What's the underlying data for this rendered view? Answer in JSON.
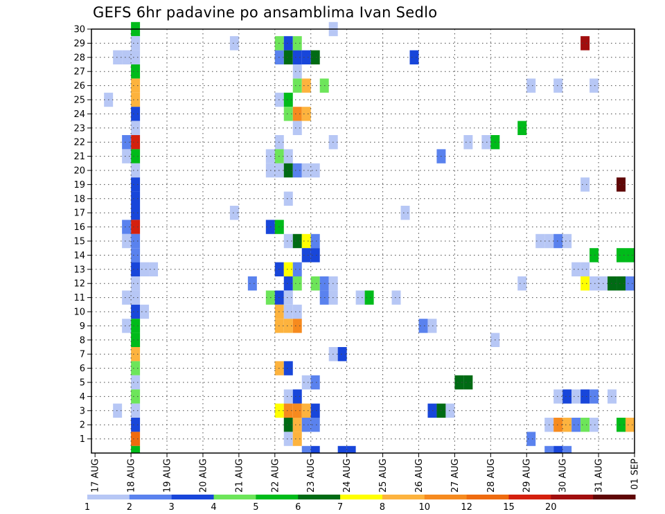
{
  "chart_data": {
    "type": "heatmap",
    "title": "GEFS 6hr padavine po ansamblima Ivan Sedlo",
    "y_ticks": [
      "1",
      "2",
      "3",
      "4",
      "5",
      "6",
      "7",
      "8",
      "9",
      "10",
      "11",
      "12",
      "13",
      "14",
      "15",
      "16",
      "17",
      "18",
      "19",
      "20",
      "21",
      "22",
      "23",
      "24",
      "25",
      "26",
      "27",
      "28",
      "29",
      "30"
    ],
    "x_ticks": [
      "17 AUG",
      "18 AUG",
      "19 AUG",
      "20 AUG",
      "21 AUG",
      "22 AUG",
      "23 AUG",
      "24 AUG",
      "25 AUG",
      "26 AUG",
      "27 AUG",
      "28 AUG",
      "29 AUG",
      "30 AUG",
      "31 AUG",
      "01 SEP"
    ],
    "x_range": [
      -0.1,
      15.0
    ],
    "y_range": [
      0,
      30
    ],
    "grid": true,
    "colorbar": {
      "labels": [
        "1",
        "2",
        "3",
        "4",
        "5",
        "6",
        "7",
        "8",
        "10",
        "12",
        "15",
        "20"
      ],
      "colors": [
        "#b7c7f5",
        "#5a82ee",
        "#1846da",
        "#6de55a",
        "#00bb1a",
        "#006b14",
        "#ffff00",
        "#fdb33e",
        "#f68a1e",
        "#ef6b0f",
        "#d4200e",
        "#a10e0e",
        "#5f0606"
      ]
    },
    "palette": [
      "#b7c7f5",
      "#5a82ee",
      "#1846da",
      "#6de55a",
      "#00bb1a",
      "#006b14",
      "#ffff00",
      "#fdb33e",
      "#f68a1e",
      "#ef6b0f",
      "#d4200e",
      "#a10e0e",
      "#5f0606"
    ],
    "values": [
      [
        0,
        1,
        4,
        30
      ],
      [
        0,
        1,
        0,
        29
      ],
      [
        0,
        1,
        0,
        28
      ],
      [
        0,
        1,
        4,
        27
      ],
      [
        0,
        1,
        7,
        26
      ],
      [
        0,
        1,
        7,
        25
      ],
      [
        0,
        1,
        2,
        24
      ],
      [
        0,
        1,
        0,
        23
      ],
      [
        0,
        1,
        10,
        22
      ],
      [
        0,
        1,
        4,
        21
      ],
      [
        0,
        1,
        0,
        20
      ],
      [
        0,
        1,
        2,
        19
      ],
      [
        0,
        1,
        2,
        18
      ],
      [
        0,
        1,
        2,
        17
      ],
      [
        0,
        1,
        10,
        16
      ],
      [
        0,
        1,
        1,
        15
      ],
      [
        0,
        1,
        1,
        14
      ],
      [
        0,
        1,
        2,
        13
      ],
      [
        0,
        1,
        0,
        12
      ],
      [
        0,
        1,
        0,
        11
      ],
      [
        0,
        1,
        2,
        10
      ],
      [
        0,
        1,
        4,
        9
      ],
      [
        0,
        1,
        4,
        8
      ],
      [
        0,
        1,
        7,
        7
      ],
      [
        0,
        1,
        3,
        6
      ],
      [
        0,
        1,
        0,
        5
      ],
      [
        0,
        1,
        3,
        4
      ],
      [
        0,
        1,
        0,
        3
      ],
      [
        0,
        1,
        2,
        2
      ],
      [
        0,
        1,
        9,
        1
      ],
      [
        0,
        1,
        4,
        0
      ],
      [
        0,
        0.5,
        0,
        28
      ],
      [
        0,
        0.75,
        0,
        28
      ],
      [
        0,
        0.75,
        1,
        22
      ],
      [
        0,
        0.75,
        0,
        21
      ],
      [
        0,
        0.75,
        1,
        16
      ],
      [
        0,
        0.75,
        0,
        15
      ],
      [
        0,
        0.75,
        0,
        11
      ],
      [
        0,
        0.75,
        0,
        9
      ],
      [
        0,
        0.25,
        0,
        25
      ],
      [
        0,
        0.5,
        0,
        3
      ],
      [
        0,
        1.25,
        0,
        13
      ],
      [
        0,
        1.5,
        0,
        13
      ],
      [
        0,
        1.25,
        0,
        10
      ],
      [
        0,
        3.75,
        0,
        29
      ],
      [
        0,
        3.75,
        0,
        17
      ],
      [
        0,
        4.25,
        1,
        12
      ],
      [
        0,
        5,
        1,
        28
      ],
      [
        0,
        5.25,
        5,
        28
      ],
      [
        0,
        5.5,
        2,
        28
      ],
      [
        0,
        5.75,
        2,
        28
      ],
      [
        0,
        6,
        5,
        28
      ],
      [
        0,
        5,
        3,
        29
      ],
      [
        0,
        5.25,
        2,
        29
      ],
      [
        0,
        5.5,
        3,
        29
      ],
      [
        0,
        5.5,
        0,
        27
      ],
      [
        0,
        5.5,
        3,
        26
      ],
      [
        0,
        5.75,
        7,
        26
      ],
      [
        0,
        6.25,
        3,
        26
      ],
      [
        0,
        5,
        0,
        25
      ],
      [
        0,
        5.25,
        4,
        25
      ],
      [
        0,
        5.25,
        3,
        24
      ],
      [
        0,
        5.5,
        8,
        24
      ],
      [
        0,
        5.75,
        7,
        24
      ],
      [
        0,
        5.5,
        0,
        23
      ],
      [
        0,
        5,
        0,
        22
      ],
      [
        0,
        4.75,
        0,
        21
      ],
      [
        0,
        5,
        3,
        21
      ],
      [
        0,
        5.25,
        0,
        21
      ],
      [
        0,
        4.75,
        0,
        20
      ],
      [
        0,
        5,
        0,
        20
      ],
      [
        0,
        5.25,
        5,
        20
      ],
      [
        0,
        5.5,
        1,
        20
      ],
      [
        0,
        5.75,
        0,
        20
      ],
      [
        0,
        6,
        0,
        20
      ],
      [
        0,
        5.25,
        0,
        18
      ],
      [
        0,
        4.75,
        2,
        16
      ],
      [
        0,
        5,
        4,
        16
      ],
      [
        0,
        5.25,
        0,
        15
      ],
      [
        0,
        5.5,
        5,
        15
      ],
      [
        0,
        5.75,
        6,
        15
      ],
      [
        0,
        6,
        1,
        15
      ],
      [
        0,
        5.75,
        2,
        14
      ],
      [
        0,
        6,
        2,
        14
      ],
      [
        0,
        5,
        2,
        13
      ],
      [
        0,
        5.25,
        6,
        13
      ],
      [
        0,
        5.5,
        1,
        13
      ],
      [
        0,
        5.25,
        2,
        12
      ],
      [
        0,
        5.5,
        3,
        12
      ],
      [
        0,
        6,
        3,
        12
      ],
      [
        0,
        6.25,
        1,
        12
      ],
      [
        0,
        6.5,
        0,
        12
      ],
      [
        0,
        4.75,
        3,
        11
      ],
      [
        0,
        5,
        2,
        11
      ],
      [
        0,
        5.25,
        0,
        11
      ],
      [
        0,
        6.25,
        1,
        11
      ],
      [
        0,
        6.5,
        0,
        11
      ],
      [
        0,
        5,
        7,
        10
      ],
      [
        0,
        5.25,
        0,
        10
      ],
      [
        0,
        5.5,
        0,
        10
      ],
      [
        0,
        5,
        7,
        9
      ],
      [
        0,
        5.25,
        7,
        9
      ],
      [
        0,
        5.5,
        8,
        9
      ],
      [
        0,
        5,
        7,
        6
      ],
      [
        0,
        5.25,
        2,
        6
      ],
      [
        0,
        5.75,
        0,
        5
      ],
      [
        0,
        6,
        1,
        5
      ],
      [
        0,
        5.25,
        0,
        4
      ],
      [
        0,
        5.5,
        2,
        4
      ],
      [
        0,
        5,
        6,
        3
      ],
      [
        0,
        5.25,
        8,
        3
      ],
      [
        0,
        5.5,
        8,
        3
      ],
      [
        0,
        5.75,
        7,
        3
      ],
      [
        0,
        6,
        2,
        3
      ],
      [
        0,
        5.25,
        5,
        2
      ],
      [
        0,
        5.5,
        7,
        2
      ],
      [
        0,
        5.75,
        1,
        2
      ],
      [
        0,
        6,
        1,
        2
      ],
      [
        0,
        5.25,
        0,
        1
      ],
      [
        0,
        5.5,
        7,
        1
      ],
      [
        0,
        5.75,
        1,
        0
      ],
      [
        0,
        6,
        2,
        0
      ],
      [
        0,
        6.75,
        2,
        0
      ],
      [
        0,
        7,
        2,
        0
      ],
      [
        0,
        6.5,
        0,
        30
      ],
      [
        0,
        6.5,
        0,
        22
      ],
      [
        0,
        6.5,
        0,
        7
      ],
      [
        0,
        6.75,
        2,
        7
      ],
      [
        0,
        7.25,
        0,
        11
      ],
      [
        0,
        7.5,
        4,
        11
      ],
      [
        0,
        8.25,
        0,
        11
      ],
      [
        0,
        8.75,
        2,
        28
      ],
      [
        0,
        8.5,
        0,
        17
      ],
      [
        0,
        9,
        1,
        9
      ],
      [
        0,
        9.25,
        0,
        9
      ],
      [
        0,
        9.5,
        1,
        21
      ],
      [
        0,
        9.25,
        2,
        3
      ],
      [
        0,
        9.5,
        5,
        3
      ],
      [
        0,
        9.75,
        0,
        3
      ],
      [
        0,
        10,
        5,
        5
      ],
      [
        0,
        10.25,
        5,
        5
      ],
      [
        0,
        10.25,
        0,
        22
      ],
      [
        0,
        10.75,
        0,
        22
      ],
      [
        0,
        11,
        4,
        22
      ],
      [
        0,
        11,
        0,
        8
      ],
      [
        0,
        11.75,
        4,
        23
      ],
      [
        0,
        12,
        0,
        26
      ],
      [
        0,
        11.75,
        0,
        12
      ],
      [
        0,
        12,
        1,
        1
      ],
      [
        0,
        12.25,
        0,
        15
      ],
      [
        0,
        12.5,
        0,
        15
      ],
      [
        0,
        12.75,
        1,
        15
      ],
      [
        0,
        13,
        0,
        15
      ],
      [
        0,
        12.75,
        0,
        26
      ],
      [
        0,
        12.75,
        0,
        4
      ],
      [
        0,
        13,
        2,
        4
      ],
      [
        0,
        13.25,
        0,
        4
      ],
      [
        0,
        13.5,
        2,
        4
      ],
      [
        0,
        13.75,
        1,
        4
      ],
      [
        0,
        14.25,
        0,
        4
      ],
      [
        0,
        12.5,
        0,
        2
      ],
      [
        0,
        12.75,
        8,
        2
      ],
      [
        0,
        13,
        7,
        2
      ],
      [
        0,
        13.25,
        1,
        2
      ],
      [
        0,
        13.5,
        3,
        2
      ],
      [
        0,
        13.75,
        0,
        2
      ],
      [
        0,
        12.5,
        1,
        0
      ],
      [
        0,
        12.75,
        2,
        0
      ],
      [
        0,
        13,
        1,
        0
      ],
      [
        0,
        13.25,
        0,
        13
      ],
      [
        0,
        13.5,
        0,
        13
      ],
      [
        0,
        13.5,
        6,
        12
      ],
      [
        0,
        13.75,
        0,
        12
      ],
      [
        0,
        14,
        0,
        12
      ],
      [
        0,
        14.25,
        5,
        12
      ],
      [
        0,
        14.5,
        5,
        12
      ],
      [
        0,
        14.75,
        1,
        12
      ],
      [
        0,
        13.5,
        11,
        29
      ],
      [
        0,
        13.75,
        0,
        26
      ],
      [
        0,
        13.5,
        0,
        19
      ],
      [
        0,
        13.75,
        4,
        14
      ],
      [
        0,
        14.5,
        4,
        14
      ],
      [
        0,
        14.75,
        4,
        14
      ],
      [
        0,
        14.5,
        4,
        2
      ],
      [
        0,
        14.75,
        7,
        2
      ],
      [
        0,
        14.5,
        12,
        19
      ]
    ]
  }
}
